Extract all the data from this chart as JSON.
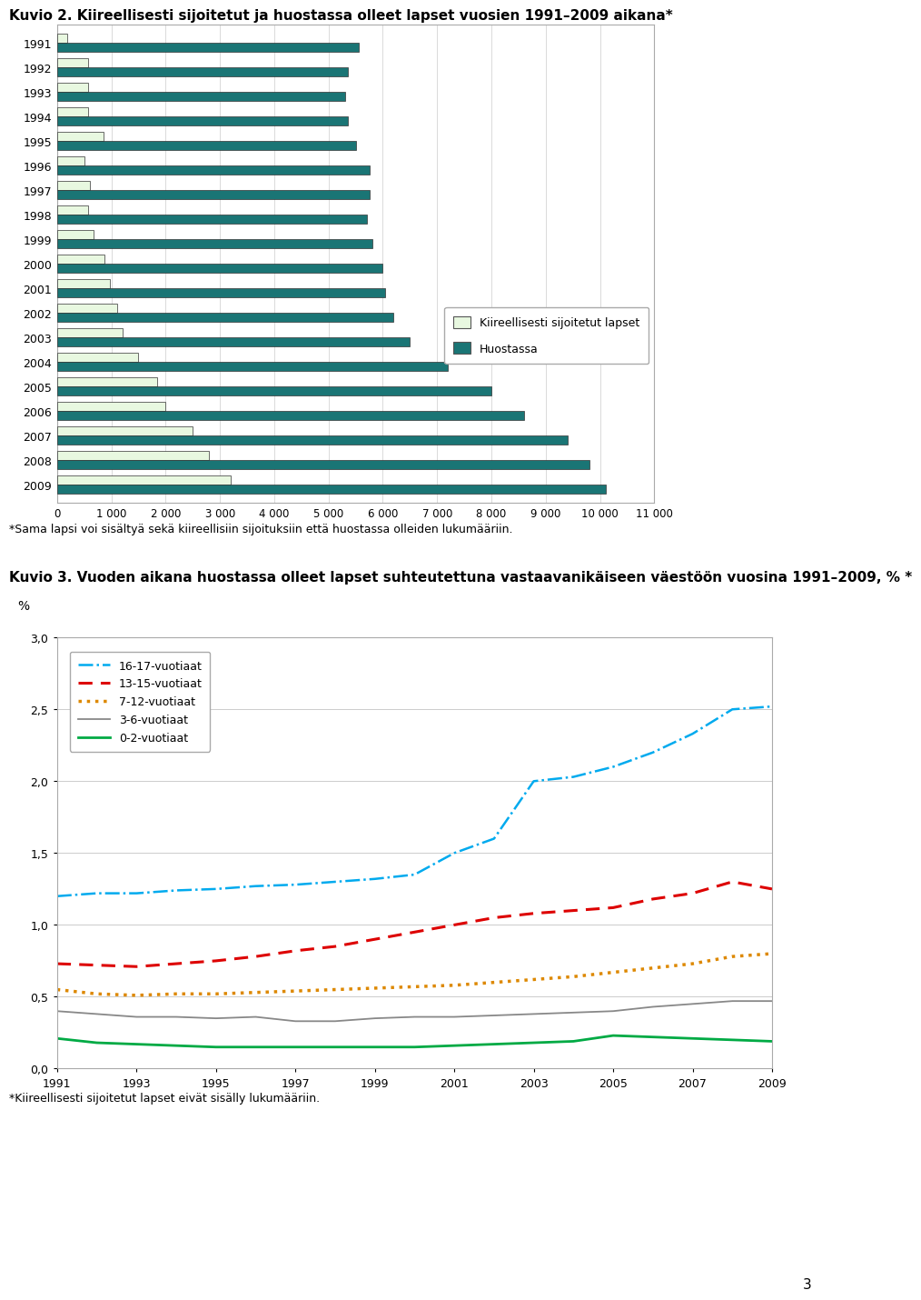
{
  "title1": "Kuvio 2. Kiireellisesti sijoitetut ja huostassa olleet lapset vuosien 1991–2009 aikana*",
  "title2": "Kuvio 3. Vuoden aikana huostassa olleet lapset suhteutettuna vastaavanikäiseen väestöön vuosina 1991–2009, % *",
  "footnote1": "*Sama lapsi voi sisältyä sekä kiireellisiin sijoituksiin että huostassa olleiden lukumääriin.",
  "footnote2": "*Kiireellisesti sijoitetut lapset eivät sisälly lukumääriin.",
  "page_number": "3",
  "bar_years": [
    2009,
    2008,
    2007,
    2006,
    2005,
    2004,
    2003,
    2002,
    2001,
    2000,
    1999,
    1998,
    1997,
    1996,
    1995,
    1994,
    1993,
    1992,
    1991
  ],
  "kiireellisesti": [
    3200,
    2800,
    2500,
    2000,
    1850,
    1500,
    1200,
    1100,
    980,
    880,
    680,
    580,
    600,
    500,
    850,
    580,
    580,
    580,
    180
  ],
  "huostassa": [
    10100,
    9800,
    9400,
    8600,
    8000,
    7200,
    6500,
    6200,
    6050,
    6000,
    5800,
    5700,
    5750,
    5750,
    5500,
    5350,
    5300,
    5350,
    5550
  ],
  "bar_color_kiir": "#e8f8e0",
  "bar_color_huos": "#1a7575",
  "bar_edgecolor": "#333333",
  "xlim_bar": [
    0,
    11000
  ],
  "xticks_bar": [
    0,
    1000,
    2000,
    3000,
    4000,
    5000,
    6000,
    7000,
    8000,
    9000,
    10000,
    11000
  ],
  "xtick_labels_bar": [
    "0",
    "1 000",
    "2 000",
    "3 000",
    "4 000",
    "5 000",
    "6 000",
    "7 000",
    "8 000",
    "9 000",
    "10 000",
    "11 000"
  ],
  "legend1_labels": [
    "Kiireellisesti sijoitetut lapset",
    "Huostassa"
  ],
  "line_years": [
    1991,
    1992,
    1993,
    1994,
    1995,
    1996,
    1997,
    1998,
    1999,
    2000,
    2001,
    2002,
    2003,
    2004,
    2005,
    2006,
    2007,
    2008,
    2009
  ],
  "line_16_17": [
    1.2,
    1.22,
    1.22,
    1.24,
    1.25,
    1.27,
    1.28,
    1.3,
    1.32,
    1.35,
    1.5,
    1.6,
    2.0,
    2.03,
    2.1,
    2.2,
    2.33,
    2.5,
    2.52
  ],
  "line_13_15": [
    0.73,
    0.72,
    0.71,
    0.73,
    0.75,
    0.78,
    0.82,
    0.85,
    0.9,
    0.95,
    1.0,
    1.05,
    1.08,
    1.1,
    1.12,
    1.18,
    1.22,
    1.3,
    1.25
  ],
  "line_7_12": [
    0.55,
    0.52,
    0.51,
    0.52,
    0.52,
    0.53,
    0.54,
    0.55,
    0.56,
    0.57,
    0.58,
    0.6,
    0.62,
    0.64,
    0.67,
    0.7,
    0.73,
    0.78,
    0.8
  ],
  "line_3_6": [
    0.4,
    0.38,
    0.36,
    0.36,
    0.35,
    0.36,
    0.33,
    0.33,
    0.35,
    0.36,
    0.36,
    0.37,
    0.38,
    0.39,
    0.4,
    0.43,
    0.45,
    0.47,
    0.47
  ],
  "line_0_2": [
    0.21,
    0.18,
    0.17,
    0.16,
    0.15,
    0.15,
    0.15,
    0.15,
    0.15,
    0.15,
    0.16,
    0.17,
    0.18,
    0.19,
    0.23,
    0.22,
    0.21,
    0.2,
    0.19
  ],
  "line_color_16_17": "#00aaee",
  "line_color_13_15": "#dd0000",
  "line_color_7_12": "#dd8800",
  "line_color_3_6": "#888888",
  "line_color_0_2": "#00aa44",
  "ylim_line": [
    0.0,
    3.0
  ],
  "yticks_line": [
    0.0,
    0.5,
    1.0,
    1.5,
    2.0,
    2.5,
    3.0
  ],
  "ylabel_line": "%",
  "xticks_line": [
    1991,
    1993,
    1995,
    1997,
    1999,
    2001,
    2003,
    2005,
    2007,
    2009
  ],
  "legend2_labels": [
    "16-17-vuotiaat",
    "13-15-vuotiaat",
    "7-12-vuotiaat",
    "3-6-vuotiaat",
    "0-2-vuotiaat"
  ],
  "bg_color": "#ffffff",
  "chart_bg": "#ffffff",
  "grid_color": "#cccccc"
}
